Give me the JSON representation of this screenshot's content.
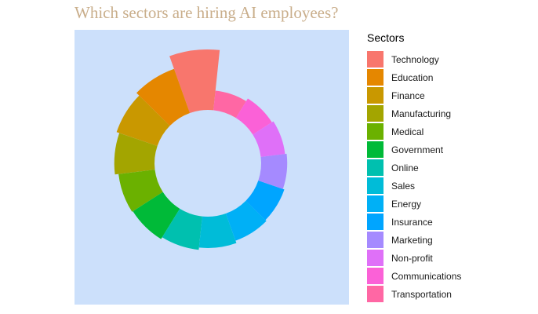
{
  "chart_data": {
    "type": "circular-bar",
    "title": "Which sectors are hiring AI employees?",
    "legend_title": "Sectors",
    "legend_position": "right",
    "panel_background": "#CCE0FB",
    "grid": false,
    "categories": [
      "Technology",
      "Education",
      "Finance",
      "Manufacturing",
      "Medical",
      "Government",
      "Online",
      "Sales",
      "Energy",
      "Insurance",
      "Marketing",
      "Non-profit",
      "Communications",
      "Transportation"
    ],
    "values": [
      100,
      55,
      45,
      38,
      30,
      28,
      24,
      20,
      16,
      14,
      12,
      10,
      8,
      5
    ],
    "colors": [
      "#F8766D",
      "#E58700",
      "#C99800",
      "#A3A500",
      "#6BB100",
      "#00BA38",
      "#00C0AF",
      "#00BCD8",
      "#00B0F6",
      "#00A5FF",
      "#A58AFF",
      "#DF70F8",
      "#FB61D7",
      "#FF67A4"
    ]
  }
}
